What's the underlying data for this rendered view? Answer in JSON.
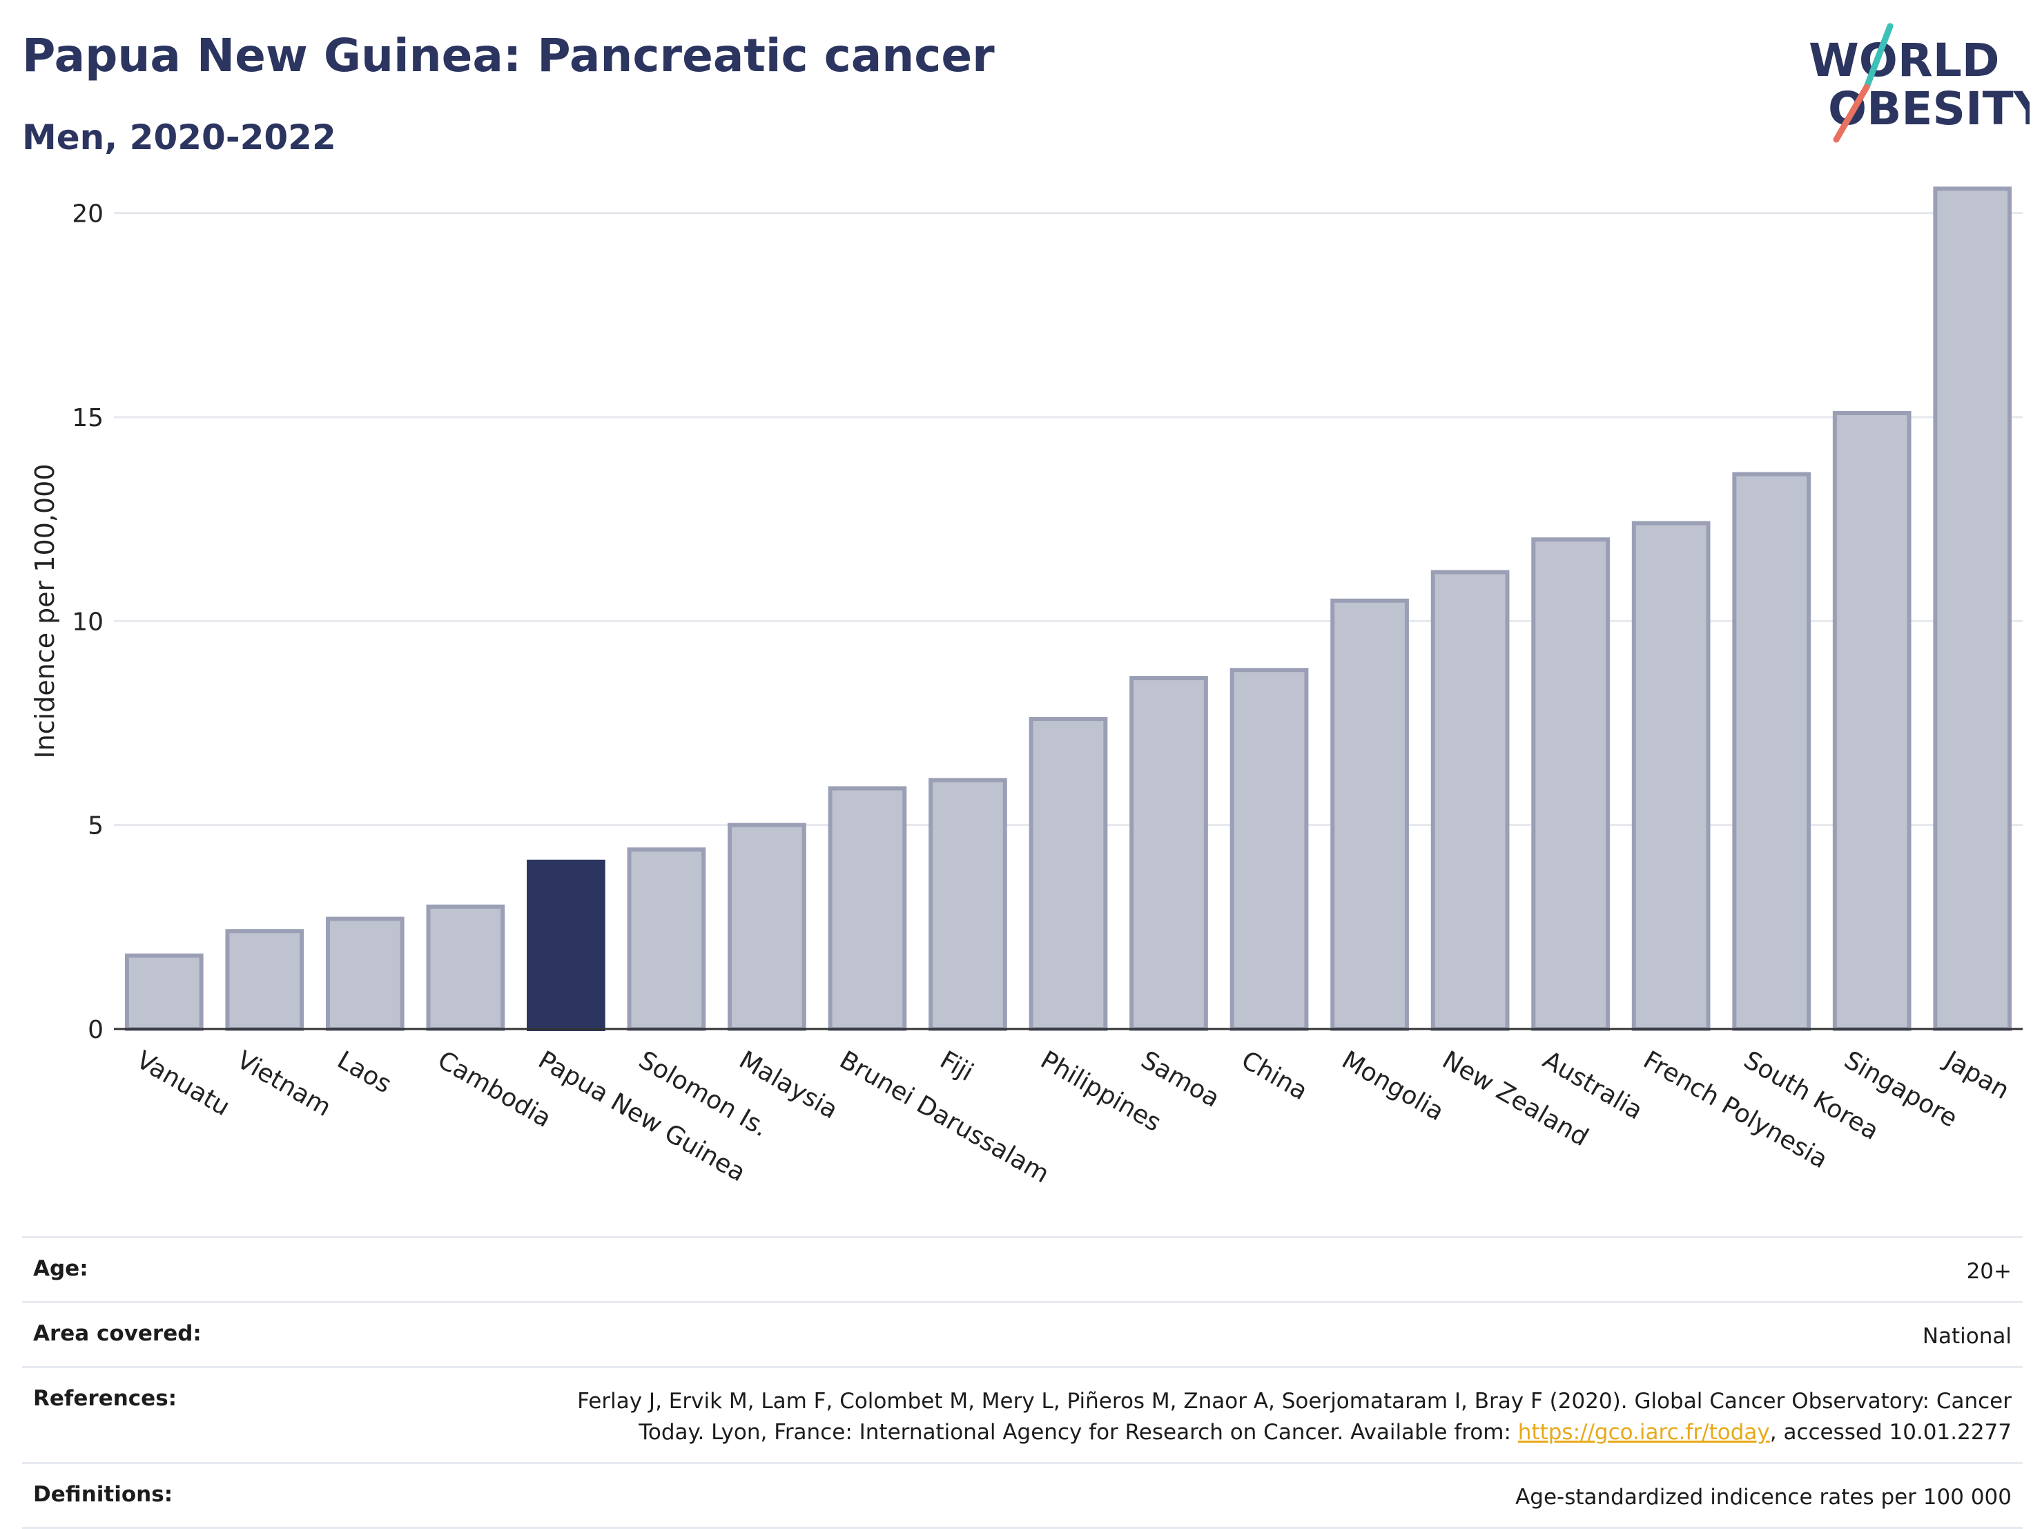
{
  "header": {
    "title": "Papua New Guinea: Pancreatic cancer",
    "subtitle": "Men, 2020-2022"
  },
  "logo": {
    "line1": "WORLD",
    "line2": "OBESITY",
    "colors": {
      "text": "#2b3560",
      "slash_top": "#3cc0b8",
      "slash_bottom": "#e8725f"
    }
  },
  "chart_data": {
    "type": "bar",
    "categories": [
      "Vanuatu",
      "Vietnam",
      "Laos",
      "Cambodia",
      "Papua New Guinea",
      "Solomon Is.",
      "Malaysia",
      "Brunei Darussalam",
      "Fiji",
      "Philippines",
      "Samoa",
      "China",
      "Mongolia",
      "New Zealand",
      "Australia",
      "French Polynesia",
      "South Korea",
      "Singapore",
      "Japan"
    ],
    "values": [
      1.8,
      2.4,
      2.7,
      3.0,
      4.1,
      4.4,
      5.0,
      5.9,
      6.1,
      7.6,
      8.6,
      8.8,
      10.5,
      11.2,
      12.0,
      12.4,
      13.6,
      15.1,
      20.6
    ],
    "highlight": "Papua New Guinea",
    "ylabel": "Incidence per 100,000",
    "xlabel": "",
    "ylim": [
      0,
      21.5
    ],
    "yticks": [
      0,
      5,
      10,
      15,
      20
    ],
    "grid": true,
    "colors": {
      "bar": "#bfc3d0",
      "bar_edge": "#9a9fb5",
      "highlight": "#2b3560"
    }
  },
  "info": {
    "age": {
      "key": "Age:",
      "value": "20+"
    },
    "area": {
      "key": "Area covered:",
      "value": "National"
    },
    "references": {
      "key": "References:",
      "text_before": "Ferlay J, Ervik M, Lam F, Colombet M, Mery L, Piñeros M, Znaor A, Soerjomataram I, Bray F (2020). Global Cancer Observatory: Cancer Today. Lyon, France: International Agency for Research on Cancer. Available from: ",
      "link": "https://gco.iarc.fr/today",
      "text_after": ", accessed 10.01.2277"
    },
    "definitions": {
      "key": "Definitions:",
      "value": "Age-standardized indicence rates per 100 000"
    }
  }
}
